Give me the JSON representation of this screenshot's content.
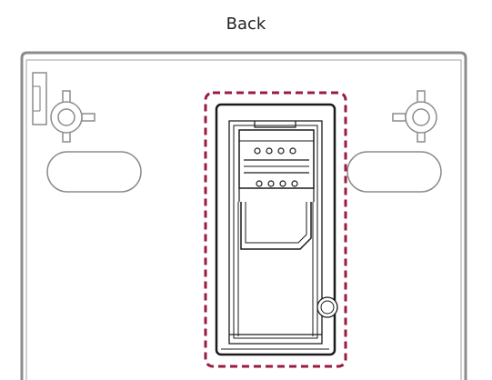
{
  "header": {
    "title": "Back"
  },
  "colors": {
    "outline_gray": "#8c8c8c",
    "line_dark": "#1a1a1a",
    "highlight_dash": "#9b1b3f",
    "background": "#ffffff"
  },
  "icons": [
    "mounting-cross-icon",
    "sim-card-icon",
    "keyhole-slot"
  ]
}
